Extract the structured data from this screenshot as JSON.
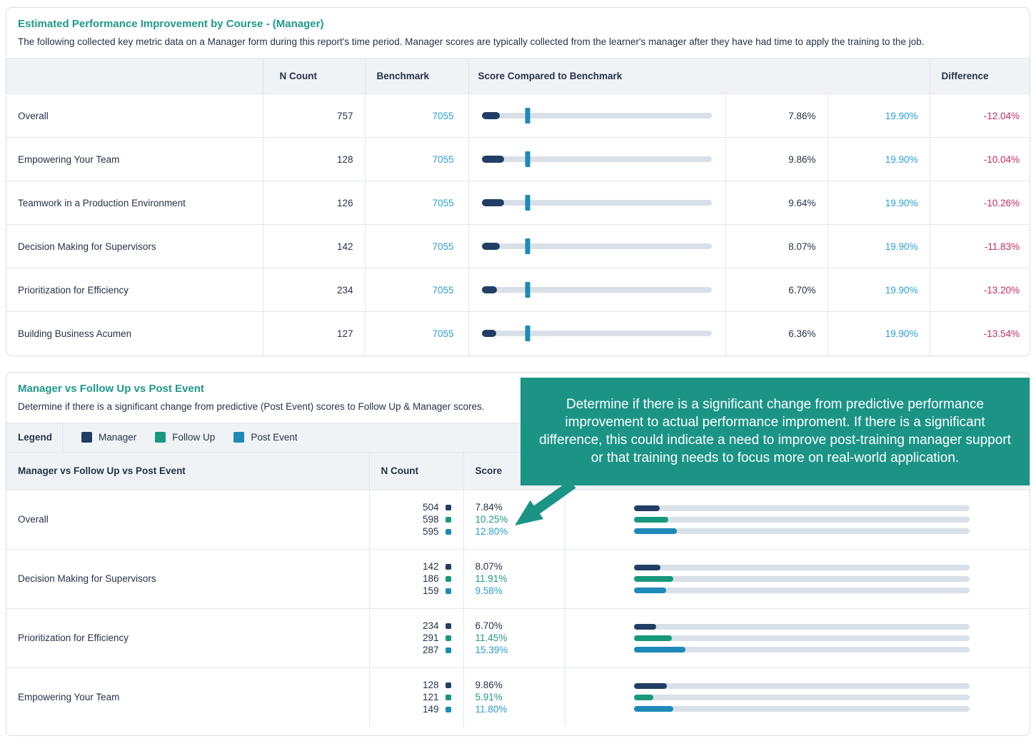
{
  "colors": {
    "title_teal": "#1f998a",
    "callout_teal": "#1b9486",
    "manager_navy": "#223e66",
    "followup_green": "#16997c",
    "postevent_blue": "#1d8ab8",
    "benchmark_text_blue": "#2d9fd0",
    "difference_red": "#c72a62",
    "bar_track": "#d9e0e8",
    "header_bg": "#f0f3f6"
  },
  "section1": {
    "title": "Estimated Performance Improvement by Course - (Manager)",
    "subtitle": "The following collected key metric data on a Manager form during this report's time period. Manager scores are typically collected from the learner's manager after they have had time to apply the training to the job.",
    "columns": {
      "n_count": "N Count",
      "benchmark": "Benchmark",
      "score_compared": "Score Compared to Benchmark",
      "difference": "Difference"
    },
    "rows": [
      {
        "course": "Overall",
        "n_count": 757,
        "benchmark": 7055,
        "score_pct": "7.86%",
        "benchmark_pct": "19.90%",
        "difference": "-12.04%",
        "score_val": 7.86,
        "benchmark_val": 19.9
      },
      {
        "course": "Empowering Your Team",
        "n_count": 128,
        "benchmark": 7055,
        "score_pct": "9.86%",
        "benchmark_pct": "19.90%",
        "difference": "-10.04%",
        "score_val": 9.86,
        "benchmark_val": 19.9
      },
      {
        "course": "Teamwork in a Production Environment",
        "n_count": 126,
        "benchmark": 7055,
        "score_pct": "9.64%",
        "benchmark_pct": "19.90%",
        "difference": "-10.26%",
        "score_val": 9.64,
        "benchmark_val": 19.9
      },
      {
        "course": "Decision Making for Supervisors",
        "n_count": 142,
        "benchmark": 7055,
        "score_pct": "8.07%",
        "benchmark_pct": "19.90%",
        "difference": "-11.83%",
        "score_val": 8.07,
        "benchmark_val": 19.9
      },
      {
        "course": "Prioritization for Efficiency",
        "n_count": 234,
        "benchmark": 7055,
        "score_pct": "6.70%",
        "benchmark_pct": "19.90%",
        "difference": "-13.20%",
        "score_val": 6.7,
        "benchmark_val": 19.9
      },
      {
        "course": "Building Business Acumen",
        "n_count": 127,
        "benchmark": 7055,
        "score_pct": "6.36%",
        "benchmark_pct": "19.90%",
        "difference": "-13.54%",
        "score_val": 6.36,
        "benchmark_val": 19.9
      }
    ]
  },
  "section2": {
    "title": "Manager vs Follow Up vs Post Event",
    "subtitle": "Determine if there is a significant change from predictive (Post Event) scores to Follow Up & Manager scores.",
    "legend": {
      "label": "Legend",
      "items": [
        {
          "label": "Manager",
          "color": "#223e66"
        },
        {
          "label": "Follow Up",
          "color": "#16997c"
        },
        {
          "label": "Post Event",
          "color": "#1d8ab8"
        }
      ]
    },
    "columns": {
      "course": "Manager vs Follow Up vs Post Event",
      "n_count": "N Count",
      "score": "Score"
    },
    "rows": [
      {
        "course": "Overall",
        "series": [
          {
            "n": 504,
            "score": "7.84%",
            "val": 7.84
          },
          {
            "n": 598,
            "score": "10.25%",
            "val": 10.25
          },
          {
            "n": 595,
            "score": "12.80%",
            "val": 12.8
          }
        ]
      },
      {
        "course": "Decision Making for Supervisors",
        "series": [
          {
            "n": 142,
            "score": "8.07%",
            "val": 8.07
          },
          {
            "n": 186,
            "score": "11.91%",
            "val": 11.91
          },
          {
            "n": 159,
            "score": "9.58%",
            "val": 9.58
          }
        ]
      },
      {
        "course": "Prioritization for Efficiency",
        "series": [
          {
            "n": 234,
            "score": "6.70%",
            "val": 6.7
          },
          {
            "n": 291,
            "score": "11.45%",
            "val": 11.45
          },
          {
            "n": 287,
            "score": "15.39%",
            "val": 15.39
          }
        ]
      },
      {
        "course": "Empowering Your Team",
        "series": [
          {
            "n": 128,
            "score": "9.86%",
            "val": 9.86
          },
          {
            "n": 121,
            "score": "5.91%",
            "val": 5.91
          },
          {
            "n": 149,
            "score": "11.80%",
            "val": 11.8
          }
        ]
      }
    ],
    "callout": {
      "text": "Determine if there is a significant change from predictive performance improvement to actual performance improment. If there is a significant difference, this could indicate a need to improve post-training manager support or that training needs to focus more on real-world application."
    }
  }
}
